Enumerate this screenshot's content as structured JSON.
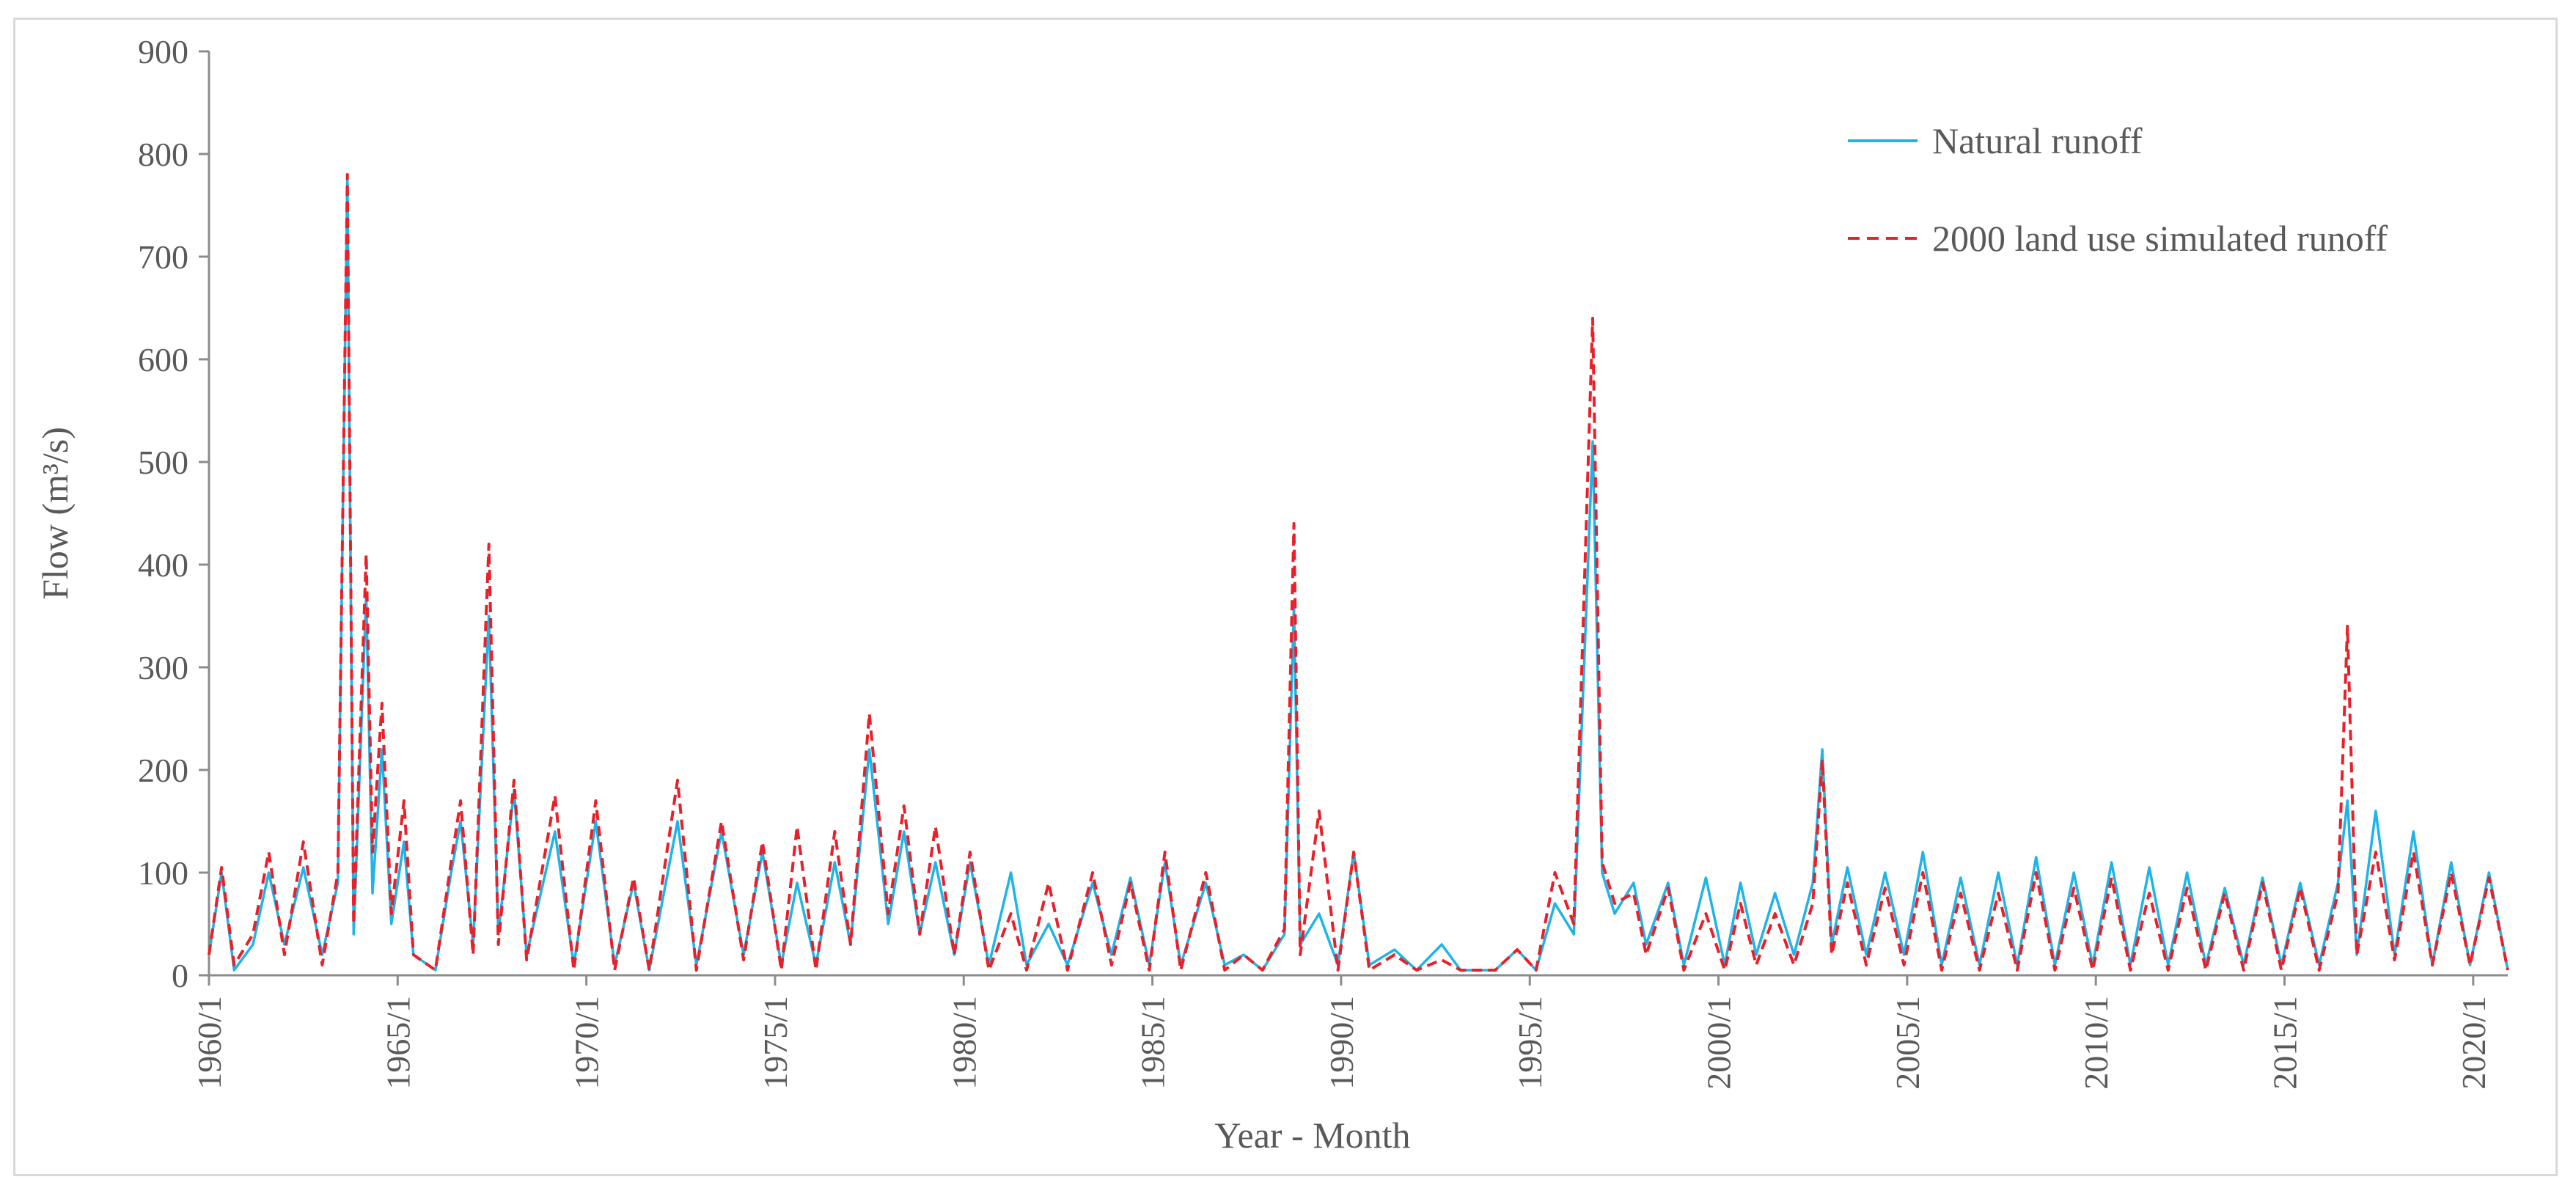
{
  "chart_data": {
    "type": "line",
    "xlabel": "Year - Month",
    "ylabel": "Flow (m³/s)",
    "ylim": [
      0,
      900
    ],
    "y_ticks": [
      "0",
      "100",
      "200",
      "300",
      "400",
      "500",
      "600",
      "700",
      "800",
      "900"
    ],
    "x_ticks": [
      "1960/1",
      "1965/1",
      "1970/1",
      "1975/1",
      "1980/1",
      "1985/1",
      "1990/1",
      "1995/1",
      "2000/1",
      "2005/1",
      "2010/1",
      "2015/1",
      "2020/1"
    ],
    "x_range": [
      "1960/1",
      "2020/12"
    ],
    "grid": false,
    "legend_position": "top-right",
    "series": [
      {
        "name": "Natural runoff",
        "color": "#1fb4e6",
        "style": "solid",
        "points": [
          [
            "1960/1",
            20
          ],
          [
            "1960/5",
            100
          ],
          [
            "1960/9",
            5
          ],
          [
            "1961/3",
            30
          ],
          [
            "1961/8",
            100
          ],
          [
            "1962/1",
            30
          ],
          [
            "1962/7",
            105
          ],
          [
            "1963/1",
            20
          ],
          [
            "1963/6",
            90
          ],
          [
            "1963/9",
            780
          ],
          [
            "1963/11",
            40
          ],
          [
            "1964/3",
            370
          ],
          [
            "1964/5",
            80
          ],
          [
            "1964/8",
            220
          ],
          [
            "1964/11",
            50
          ],
          [
            "1965/3",
            130
          ],
          [
            "1965/6",
            20
          ],
          [
            "1966/1",
            5
          ],
          [
            "1966/6",
            100
          ],
          [
            "1966/9",
            150
          ],
          [
            "1967/1",
            30
          ],
          [
            "1967/6",
            350
          ],
          [
            "1967/9",
            40
          ],
          [
            "1968/2",
            180
          ],
          [
            "1968/6",
            20
          ],
          [
            "1969/3",
            140
          ],
          [
            "1969/9",
            10
          ],
          [
            "1970/4",
            150
          ],
          [
            "1970/10",
            10
          ],
          [
            "1971/4",
            90
          ],
          [
            "1971/9",
            5
          ],
          [
            "1972/6",
            150
          ],
          [
            "1972/12",
            10
          ],
          [
            "1973/8",
            140
          ],
          [
            "1974/3",
            20
          ],
          [
            "1974/9",
            120
          ],
          [
            "1975/3",
            10
          ],
          [
            "1975/8",
            90
          ],
          [
            "1976/2",
            10
          ],
          [
            "1976/8",
            110
          ],
          [
            "1977/1",
            30
          ],
          [
            "1977/7",
            220
          ],
          [
            "1978/1",
            50
          ],
          [
            "1978/6",
            140
          ],
          [
            "1978/11",
            40
          ],
          [
            "1979/4",
            110
          ],
          [
            "1979/10",
            20
          ],
          [
            "1980/3",
            110
          ],
          [
            "1980/9",
            10
          ],
          [
            "1981/4",
            100
          ],
          [
            "1981/9",
            10
          ],
          [
            "1982/4",
            50
          ],
          [
            "1982/10",
            10
          ],
          [
            "1983/6",
            90
          ],
          [
            "1983/12",
            20
          ],
          [
            "1984/6",
            95
          ],
          [
            "1984/12",
            10
          ],
          [
            "1985/5",
            110
          ],
          [
            "1985/10",
            10
          ],
          [
            "1986/6",
            90
          ],
          [
            "1986/12",
            10
          ],
          [
            "1987/6",
            20
          ],
          [
            "1987/12",
            5
          ],
          [
            "1988/7",
            40
          ],
          [
            "1988/10",
            360
          ],
          [
            "1988/12",
            30
          ],
          [
            "1989/6",
            60
          ],
          [
            "1989/12",
            10
          ],
          [
            "1990/5",
            120
          ],
          [
            "1990/10",
            10
          ],
          [
            "1991/6",
            25
          ],
          [
            "1992/1",
            5
          ],
          [
            "1992/9",
            30
          ],
          [
            "1993/3",
            5
          ],
          [
            "1994/2",
            5
          ],
          [
            "1994/9",
            25
          ],
          [
            "1995/3",
            5
          ],
          [
            "1995/9",
            70
          ],
          [
            "1996/3",
            40
          ],
          [
            "1996/9",
            520
          ],
          [
            "1996/12",
            100
          ],
          [
            "1997/4",
            60
          ],
          [
            "1997/10",
            90
          ],
          [
            "1998/2",
            30
          ],
          [
            "1998/9",
            90
          ],
          [
            "1999/2",
            10
          ],
          [
            "1999/9",
            95
          ],
          [
            "2000/3",
            10
          ],
          [
            "2000/8",
            90
          ],
          [
            "2001/1",
            20
          ],
          [
            "2001/7",
            80
          ],
          [
            "2002/1",
            20
          ],
          [
            "2002/7",
            90
          ],
          [
            "2002/10",
            220
          ],
          [
            "2003/1",
            30
          ],
          [
            "2003/6",
            105
          ],
          [
            "2003/12",
            20
          ],
          [
            "2004/6",
            100
          ],
          [
            "2004/12",
            20
          ],
          [
            "2005/6",
            120
          ],
          [
            "2005/12",
            10
          ],
          [
            "2006/6",
            95
          ],
          [
            "2006/12",
            10
          ],
          [
            "2007/6",
            100
          ],
          [
            "2007/12",
            10
          ],
          [
            "2008/6",
            115
          ],
          [
            "2008/12",
            10
          ],
          [
            "2009/6",
            100
          ],
          [
            "2009/12",
            10
          ],
          [
            "2010/6",
            110
          ],
          [
            "2010/12",
            10
          ],
          [
            "2011/6",
            105
          ],
          [
            "2011/12",
            10
          ],
          [
            "2012/6",
            100
          ],
          [
            "2012/12",
            10
          ],
          [
            "2013/6",
            85
          ],
          [
            "2013/12",
            10
          ],
          [
            "2014/6",
            95
          ],
          [
            "2014/12",
            10
          ],
          [
            "2015/6",
            90
          ],
          [
            "2015/12",
            10
          ],
          [
            "2016/6",
            90
          ],
          [
            "2016/9",
            170
          ],
          [
            "2016/12",
            20
          ],
          [
            "2017/6",
            160
          ],
          [
            "2017/12",
            20
          ],
          [
            "2018/6",
            140
          ],
          [
            "2018/12",
            10
          ],
          [
            "2019/6",
            110
          ],
          [
            "2019/12",
            10
          ],
          [
            "2020/6",
            100
          ],
          [
            "2020/12",
            5
          ]
        ]
      },
      {
        "name": "2000 land use simulated runoff",
        "color": "#e8202a",
        "style": "dashed",
        "points": [
          [
            "1960/1",
            20
          ],
          [
            "1960/5",
            105
          ],
          [
            "1960/9",
            10
          ],
          [
            "1961/3",
            40
          ],
          [
            "1961/8",
            120
          ],
          [
            "1962/1",
            20
          ],
          [
            "1962/7",
            130
          ],
          [
            "1963/1",
            10
          ],
          [
            "1963/6",
            100
          ],
          [
            "1963/9",
            780
          ],
          [
            "1963/11",
            50
          ],
          [
            "1964/3",
            410
          ],
          [
            "1964/5",
            120
          ],
          [
            "1964/8",
            265
          ],
          [
            "1964/11",
            60
          ],
          [
            "1965/3",
            170
          ],
          [
            "1965/6",
            20
          ],
          [
            "1966/1",
            5
          ],
          [
            "1966/6",
            110
          ],
          [
            "1966/9",
            170
          ],
          [
            "1967/1",
            20
          ],
          [
            "1967/6",
            420
          ],
          [
            "1967/9",
            30
          ],
          [
            "1968/2",
            190
          ],
          [
            "1968/6",
            15
          ],
          [
            "1969/3",
            175
          ],
          [
            "1969/9",
            5
          ],
          [
            "1970/4",
            170
          ],
          [
            "1970/10",
            5
          ],
          [
            "1971/4",
            95
          ],
          [
            "1971/9",
            5
          ],
          [
            "1972/6",
            190
          ],
          [
            "1972/12",
            5
          ],
          [
            "1973/8",
            150
          ],
          [
            "1974/3",
            15
          ],
          [
            "1974/9",
            130
          ],
          [
            "1975/3",
            5
          ],
          [
            "1975/8",
            145
          ],
          [
            "1976/2",
            5
          ],
          [
            "1976/8",
            140
          ],
          [
            "1977/1",
            30
          ],
          [
            "1977/7",
            255
          ],
          [
            "1978/1",
            60
          ],
          [
            "1978/6",
            165
          ],
          [
            "1978/11",
            40
          ],
          [
            "1979/4",
            145
          ],
          [
            "1979/10",
            20
          ],
          [
            "1980/3",
            120
          ],
          [
            "1980/9",
            5
          ],
          [
            "1981/4",
            60
          ],
          [
            "1981/9",
            5
          ],
          [
            "1982/4",
            90
          ],
          [
            "1982/10",
            5
          ],
          [
            "1983/6",
            100
          ],
          [
            "1983/12",
            10
          ],
          [
            "1984/6",
            90
          ],
          [
            "1984/12",
            5
          ],
          [
            "1985/5",
            120
          ],
          [
            "1985/10",
            5
          ],
          [
            "1986/6",
            100
          ],
          [
            "1986/12",
            5
          ],
          [
            "1987/6",
            20
          ],
          [
            "1987/12",
            5
          ],
          [
            "1988/7",
            45
          ],
          [
            "1988/10",
            440
          ],
          [
            "1988/12",
            20
          ],
          [
            "1989/6",
            160
          ],
          [
            "1989/12",
            5
          ],
          [
            "1990/5",
            120
          ],
          [
            "1990/10",
            5
          ],
          [
            "1991/6",
            20
          ],
          [
            "1992/1",
            5
          ],
          [
            "1992/9",
            15
          ],
          [
            "1993/3",
            5
          ],
          [
            "1994/2",
            5
          ],
          [
            "1994/9",
            25
          ],
          [
            "1995/3",
            5
          ],
          [
            "1995/9",
            100
          ],
          [
            "1996/3",
            50
          ],
          [
            "1996/9",
            640
          ],
          [
            "1996/12",
            110
          ],
          [
            "1997/4",
            70
          ],
          [
            "1997/10",
            80
          ],
          [
            "1998/2",
            20
          ],
          [
            "1998/9",
            85
          ],
          [
            "1999/2",
            5
          ],
          [
            "1999/9",
            60
          ],
          [
            "2000/3",
            5
          ],
          [
            "2000/8",
            70
          ],
          [
            "2001/1",
            10
          ],
          [
            "2001/7",
            60
          ],
          [
            "2002/1",
            10
          ],
          [
            "2002/7",
            70
          ],
          [
            "2002/10",
            210
          ],
          [
            "2003/1",
            20
          ],
          [
            "2003/6",
            90
          ],
          [
            "2003/12",
            10
          ],
          [
            "2004/6",
            85
          ],
          [
            "2004/12",
            10
          ],
          [
            "2005/6",
            100
          ],
          [
            "2005/12",
            5
          ],
          [
            "2006/6",
            80
          ],
          [
            "2006/12",
            5
          ],
          [
            "2007/6",
            80
          ],
          [
            "2007/12",
            5
          ],
          [
            "2008/6",
            100
          ],
          [
            "2008/12",
            5
          ],
          [
            "2009/6",
            85
          ],
          [
            "2009/12",
            5
          ],
          [
            "2010/6",
            95
          ],
          [
            "2010/12",
            5
          ],
          [
            "2011/6",
            80
          ],
          [
            "2011/12",
            5
          ],
          [
            "2012/6",
            85
          ],
          [
            "2012/12",
            5
          ],
          [
            "2013/6",
            80
          ],
          [
            "2013/12",
            5
          ],
          [
            "2014/6",
            90
          ],
          [
            "2014/12",
            5
          ],
          [
            "2015/6",
            85
          ],
          [
            "2015/12",
            5
          ],
          [
            "2016/6",
            80
          ],
          [
            "2016/9",
            340
          ],
          [
            "2016/12",
            20
          ],
          [
            "2017/6",
            120
          ],
          [
            "2017/12",
            15
          ],
          [
            "2018/6",
            120
          ],
          [
            "2018/12",
            10
          ],
          [
            "2019/6",
            100
          ],
          [
            "2019/12",
            10
          ],
          [
            "2020/6",
            95
          ],
          [
            "2020/12",
            5
          ]
        ]
      }
    ]
  }
}
